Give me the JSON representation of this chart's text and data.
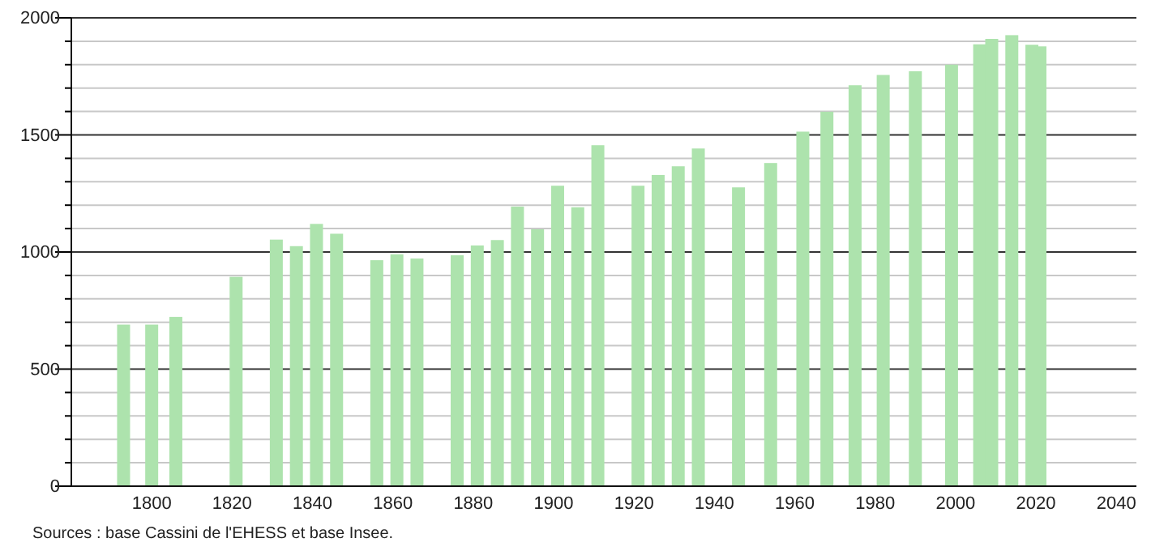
{
  "chart_data": {
    "type": "bar",
    "x": [
      1793,
      1800,
      1806,
      1821,
      1831,
      1836,
      1841,
      1846,
      1856,
      1861,
      1866,
      1876,
      1881,
      1886,
      1891,
      1896,
      1901,
      1906,
      1911,
      1921,
      1926,
      1931,
      1936,
      1946,
      1954,
      1962,
      1968,
      1975,
      1982,
      1990,
      1999,
      2006,
      2009,
      2014,
      2019,
      2021
    ],
    "values": [
      690,
      690,
      723,
      894,
      1053,
      1025,
      1120,
      1078,
      965,
      990,
      972,
      986,
      1028,
      1051,
      1194,
      1097,
      1283,
      1191,
      1456,
      1283,
      1329,
      1366,
      1442,
      1276,
      1380,
      1514,
      1599,
      1712,
      1756,
      1772,
      1800,
      1887,
      1910,
      1926,
      1885,
      1878
    ],
    "color": "#ade3ad",
    "xlim": [
      1780,
      2045
    ],
    "xticks": [
      1800,
      1820,
      1840,
      1860,
      1880,
      1900,
      1920,
      1940,
      1960,
      1980,
      2000,
      2020,
      2040
    ],
    "ylim": [
      0,
      2000
    ],
    "yticks": [
      0,
      {
        "value": 100,
        "label": null
      },
      {
        "value": 200,
        "label": null
      },
      {
        "value": 300,
        "label": null
      },
      {
        "value": 400,
        "label": null
      },
      500,
      {
        "value": 600,
        "label": null
      },
      {
        "value": 700,
        "label": null
      },
      {
        "value": 800,
        "label": null
      },
      {
        "value": 900,
        "label": null
      },
      1000,
      {
        "value": 1100,
        "label": null
      },
      {
        "value": 1200,
        "label": null
      },
      {
        "value": 1300,
        "label": null
      },
      {
        "value": 1400,
        "label": null
      },
      1500,
      {
        "value": 1600,
        "label": null
      },
      {
        "value": 1700,
        "label": null
      },
      {
        "value": 1800,
        "label": null
      },
      {
        "value": 1900,
        "label": null
      },
      2000
    ],
    "grid": true,
    "annotations": [
      "Sources : base Cassini de l'EHESS et base Insee."
    ]
  }
}
